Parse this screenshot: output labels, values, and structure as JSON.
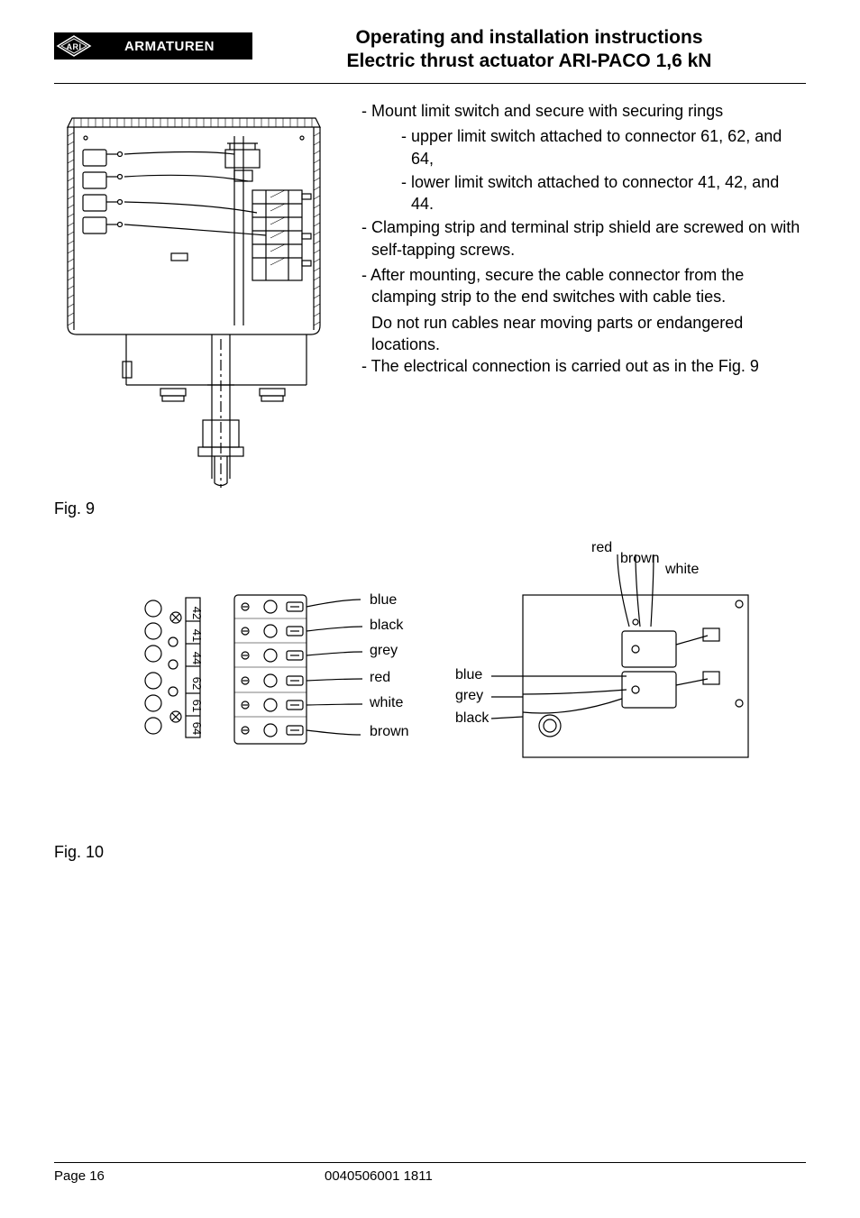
{
  "header": {
    "logo_brand": "ARMATUREN",
    "title_line1": "Operating and installation instructions",
    "title_line2": "Electric thrust actuator ARI-PACO 1,6 kN"
  },
  "instructions": {
    "items": [
      {
        "type": "main",
        "text": "- Mount limit switch and secure with securing rings"
      },
      {
        "type": "sub",
        "text": "- upper limit switch attached to connector 61, 62, and 64,"
      },
      {
        "type": "sub",
        "text": "- lower limit switch attached to connector 41, 42, and 44."
      },
      {
        "type": "main",
        "text": "- Clamping strip and terminal strip shield are screwed on with self-tapping screws."
      },
      {
        "type": "main",
        "text": "- After mounting, secure the cable connector from the  clamping strip to the end switches with cable ties."
      },
      {
        "type": "cont",
        "text": "Do not run cables near moving parts or endangered locations."
      },
      {
        "type": "main",
        "text": "- The electrical connection is carried out as in the Fig. 9"
      }
    ]
  },
  "fig9": {
    "caption": "Fig. 9"
  },
  "fig10": {
    "caption": "Fig. 10",
    "terminal_labels": [
      "42",
      "41",
      "44",
      "62",
      "61",
      "64"
    ],
    "left_wire_colors": [
      "blue",
      "black",
      "grey",
      "red",
      "white",
      "brown"
    ],
    "right_top_labels": [
      "red",
      "brown",
      "white"
    ],
    "right_side_labels": [
      "blue",
      "grey",
      "black"
    ]
  },
  "footer": {
    "page": "Page 16",
    "docnum": "0040506001 1811"
  },
  "colors": {
    "text": "#000000",
    "background": "#ffffff",
    "stroke": "#000000"
  }
}
